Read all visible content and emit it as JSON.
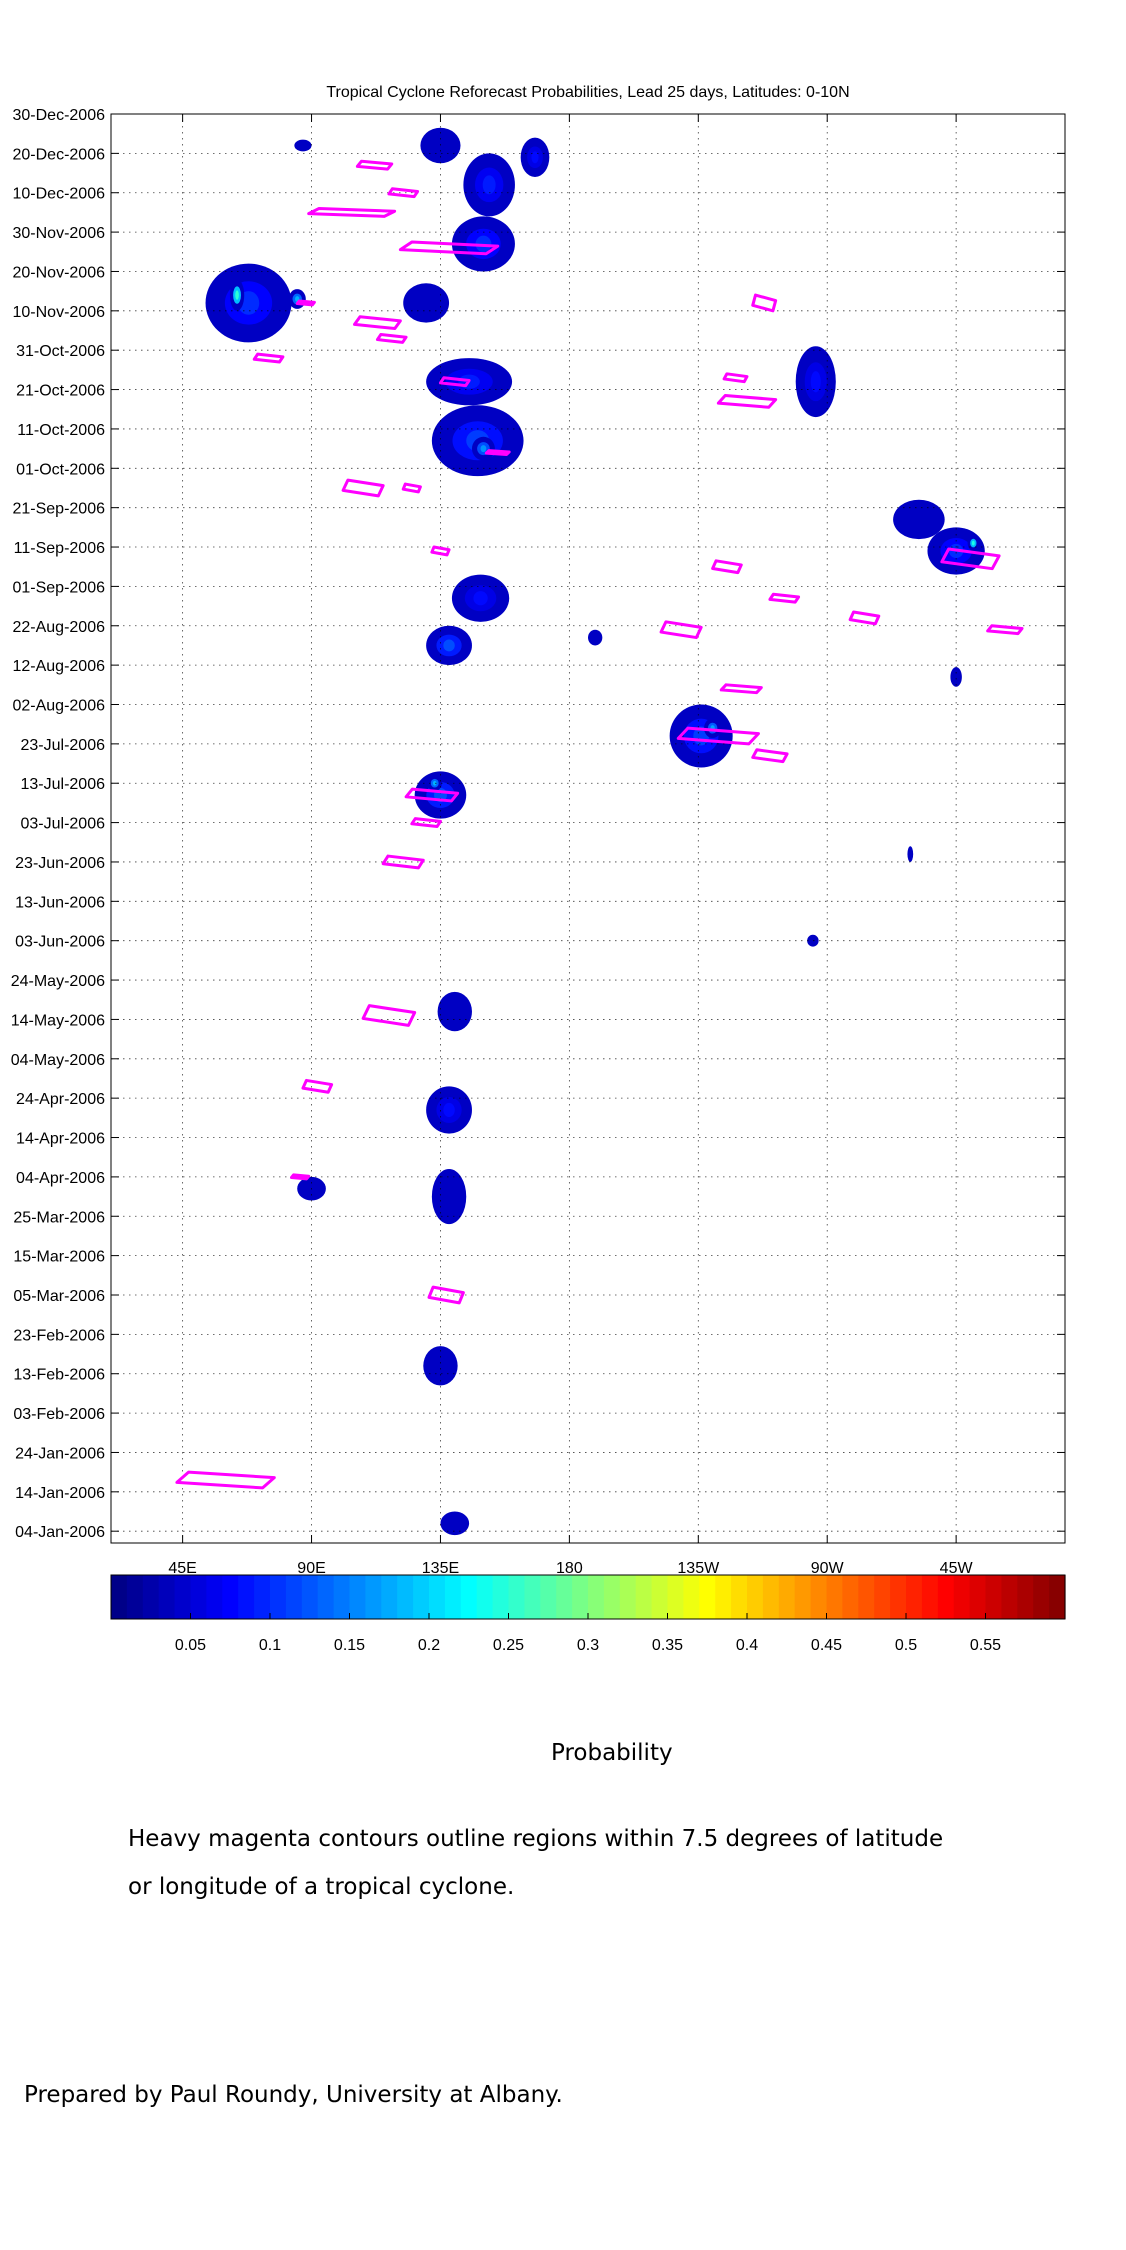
{
  "chart_data": {
    "type": "heatmap",
    "title": "Tropical Cyclone Reforecast Probabilities, Lead 25 days, Latitudes: 0-10N",
    "x_ticks": [
      "45E",
      "90E",
      "135E",
      "180",
      "135W",
      "90W",
      "45W"
    ],
    "x_tick_values": [
      45,
      90,
      135,
      180,
      225,
      270,
      315
    ],
    "xlim": [
      20,
      353
    ],
    "y_ticks": [
      "30-Dec-2006",
      "20-Dec-2006",
      "10-Dec-2006",
      "30-Nov-2006",
      "20-Nov-2006",
      "10-Nov-2006",
      "31-Oct-2006",
      "21-Oct-2006",
      "11-Oct-2006",
      "01-Oct-2006",
      "21-Sep-2006",
      "11-Sep-2006",
      "01-Sep-2006",
      "22-Aug-2006",
      "12-Aug-2006",
      "02-Aug-2006",
      "23-Jul-2006",
      "13-Jul-2006",
      "03-Jul-2006",
      "23-Jun-2006",
      "13-Jun-2006",
      "03-Jun-2006",
      "24-May-2006",
      "14-May-2006",
      "04-May-2006",
      "24-Apr-2006",
      "14-Apr-2006",
      "04-Apr-2006",
      "25-Mar-2006",
      "15-Mar-2006",
      "05-Mar-2006",
      "23-Feb-2006",
      "13-Feb-2006",
      "03-Feb-2006",
      "24-Jan-2006",
      "14-Jan-2006",
      "04-Jan-2006"
    ],
    "y_tick_values": [
      363,
      353,
      343,
      333,
      323,
      313,
      303,
      293,
      283,
      273,
      263,
      253,
      243,
      233,
      223,
      213,
      203,
      193,
      183,
      173,
      163,
      153,
      143,
      133,
      123,
      113,
      103,
      93,
      83,
      73,
      63,
      53,
      43,
      33,
      23,
      13,
      3
    ],
    "ylim": [
      0,
      363
    ],
    "grid": true,
    "colorbar": {
      "label": "Probability",
      "ticks": [
        "0.05",
        "0.1",
        "0.15",
        "0.2",
        "0.25",
        "0.3",
        "0.35",
        "0.4",
        "0.45",
        "0.5",
        "0.55"
      ],
      "range": [
        0,
        0.6
      ],
      "colormap": "jet"
    },
    "contour_color": "#ff00ff",
    "probability_blobs": [
      {
        "lon": 135,
        "day": 355,
        "lon_w": 14,
        "day_w": 9,
        "p": 0.07
      },
      {
        "lon": 152,
        "day": 345,
        "lon_w": 18,
        "day_w": 16,
        "p": 0.09
      },
      {
        "lon": 150,
        "day": 330,
        "lon_w": 22,
        "day_w": 14,
        "p": 0.1
      },
      {
        "lon": 168,
        "day": 352,
        "lon_w": 10,
        "day_w": 10,
        "p": 0.08
      },
      {
        "lon": 68,
        "day": 315,
        "lon_w": 30,
        "day_w": 20,
        "p": 0.1
      },
      {
        "lon": 64,
        "day": 317,
        "lon_w": 5,
        "day_w": 8,
        "p": 0.25
      },
      {
        "lon": 85,
        "day": 316,
        "lon_w": 6,
        "day_w": 5,
        "p": 0.18
      },
      {
        "lon": 130,
        "day": 315,
        "lon_w": 16,
        "day_w": 10,
        "p": 0.07
      },
      {
        "lon": 145,
        "day": 295,
        "lon_w": 30,
        "day_w": 12,
        "p": 0.09
      },
      {
        "lon": 148,
        "day": 280,
        "lon_w": 32,
        "day_w": 18,
        "p": 0.11
      },
      {
        "lon": 150,
        "day": 278,
        "lon_w": 8,
        "day_w": 6,
        "p": 0.16
      },
      {
        "lon": 149,
        "day": 240,
        "lon_w": 20,
        "day_w": 12,
        "p": 0.08
      },
      {
        "lon": 138,
        "day": 228,
        "lon_w": 16,
        "day_w": 10,
        "p": 0.12
      },
      {
        "lon": 135,
        "day": 190,
        "lon_w": 18,
        "day_w": 12,
        "p": 0.12
      },
      {
        "lon": 133,
        "day": 193,
        "lon_w": 5,
        "day_w": 4,
        "p": 0.18
      },
      {
        "lon": 226,
        "day": 205,
        "lon_w": 22,
        "day_w": 16,
        "p": 0.11
      },
      {
        "lon": 230,
        "day": 207,
        "lon_w": 6,
        "day_w": 5,
        "p": 0.17
      },
      {
        "lon": 266,
        "day": 295,
        "lon_w": 14,
        "day_w": 18,
        "p": 0.08
      },
      {
        "lon": 302,
        "day": 260,
        "lon_w": 18,
        "day_w": 10,
        "p": 0.07
      },
      {
        "lon": 315,
        "day": 252,
        "lon_w": 20,
        "day_w": 12,
        "p": 0.1
      },
      {
        "lon": 321,
        "day": 254,
        "lon_w": 4,
        "day_w": 4,
        "p": 0.24
      },
      {
        "lon": 140,
        "day": 135,
        "lon_w": 12,
        "day_w": 10,
        "p": 0.07
      },
      {
        "lon": 138,
        "day": 110,
        "lon_w": 16,
        "day_w": 12,
        "p": 0.08
      },
      {
        "lon": 138,
        "day": 88,
        "lon_w": 12,
        "day_w": 14,
        "p": 0.07
      },
      {
        "lon": 135,
        "day": 45,
        "lon_w": 12,
        "day_w": 10,
        "p": 0.07
      },
      {
        "lon": 140,
        "day": 5,
        "lon_w": 10,
        "day_w": 6,
        "p": 0.06
      },
      {
        "lon": 90,
        "day": 90,
        "lon_w": 10,
        "day_w": 6,
        "p": 0.06
      },
      {
        "lon": 87,
        "day": 355,
        "lon_w": 6,
        "day_w": 3,
        "p": 0.06
      },
      {
        "lon": 265,
        "day": 153,
        "lon_w": 4,
        "day_w": 3,
        "p": 0.06
      },
      {
        "lon": 299,
        "day": 175,
        "lon_w": 2,
        "day_w": 4,
        "p": 0.06
      },
      {
        "lon": 315,
        "day": 220,
        "lon_w": 4,
        "day_w": 5,
        "p": 0.06
      },
      {
        "lon": 189,
        "day": 230,
        "lon_w": 5,
        "day_w": 4,
        "p": 0.06
      }
    ],
    "tc_contours": [
      {
        "lon": 112,
        "day": 350,
        "lon_w": 12,
        "day_w": 2
      },
      {
        "lon": 122,
        "day": 343,
        "lon_w": 10,
        "day_w": 2
      },
      {
        "lon": 104,
        "day": 338,
        "lon_w": 30,
        "day_w": 2
      },
      {
        "lon": 138,
        "day": 329,
        "lon_w": 34,
        "day_w": 3
      },
      {
        "lon": 113,
        "day": 310,
        "lon_w": 16,
        "day_w": 3
      },
      {
        "lon": 118,
        "day": 306,
        "lon_w": 10,
        "day_w": 2
      },
      {
        "lon": 140,
        "day": 295,
        "lon_w": 10,
        "day_w": 2
      },
      {
        "lon": 108,
        "day": 268,
        "lon_w": 14,
        "day_w": 4
      },
      {
        "lon": 135,
        "day": 252,
        "lon_w": 6,
        "day_w": 2
      },
      {
        "lon": 75,
        "day": 301,
        "lon_w": 10,
        "day_w": 2
      },
      {
        "lon": 248,
        "day": 315,
        "lon_w": 8,
        "day_w": 4
      },
      {
        "lon": 242,
        "day": 290,
        "lon_w": 20,
        "day_w": 3
      },
      {
        "lon": 238,
        "day": 296,
        "lon_w": 8,
        "day_w": 2
      },
      {
        "lon": 235,
        "day": 248,
        "lon_w": 10,
        "day_w": 3
      },
      {
        "lon": 255,
        "day": 240,
        "lon_w": 10,
        "day_w": 2
      },
      {
        "lon": 283,
        "day": 235,
        "lon_w": 10,
        "day_w": 3
      },
      {
        "lon": 320,
        "day": 250,
        "lon_w": 20,
        "day_w": 5
      },
      {
        "lon": 332,
        "day": 232,
        "lon_w": 12,
        "day_w": 2
      },
      {
        "lon": 219,
        "day": 232,
        "lon_w": 14,
        "day_w": 4
      },
      {
        "lon": 240,
        "day": 217,
        "lon_w": 14,
        "day_w": 2
      },
      {
        "lon": 232,
        "day": 205,
        "lon_w": 28,
        "day_w": 4
      },
      {
        "lon": 250,
        "day": 200,
        "lon_w": 12,
        "day_w": 3
      },
      {
        "lon": 132,
        "day": 190,
        "lon_w": 18,
        "day_w": 3
      },
      {
        "lon": 130,
        "day": 183,
        "lon_w": 10,
        "day_w": 2
      },
      {
        "lon": 122,
        "day": 173,
        "lon_w": 14,
        "day_w": 3
      },
      {
        "lon": 117,
        "day": 134,
        "lon_w": 18,
        "day_w": 5
      },
      {
        "lon": 92,
        "day": 116,
        "lon_w": 10,
        "day_w": 3
      },
      {
        "lon": 137,
        "day": 63,
        "lon_w": 12,
        "day_w": 4
      },
      {
        "lon": 60,
        "day": 16,
        "lon_w": 34,
        "day_w": 4
      },
      {
        "lon": 125,
        "day": 268,
        "lon_w": 6,
        "day_w": 2
      },
      {
        "lon": 155,
        "day": 277,
        "lon_w": 8,
        "day_w": 1
      },
      {
        "lon": 86,
        "day": 93,
        "lon_w": 6,
        "day_w": 1
      },
      {
        "lon": 88,
        "day": 315,
        "lon_w": 6,
        "day_w": 1
      }
    ]
  },
  "caption": {
    "line1": "Heavy magenta contours outline regions within 7.5 degrees of latitude",
    "line2": "or longitude of a tropical cyclone.",
    "credit": "Prepared by Paul Roundy, University at Albany."
  }
}
